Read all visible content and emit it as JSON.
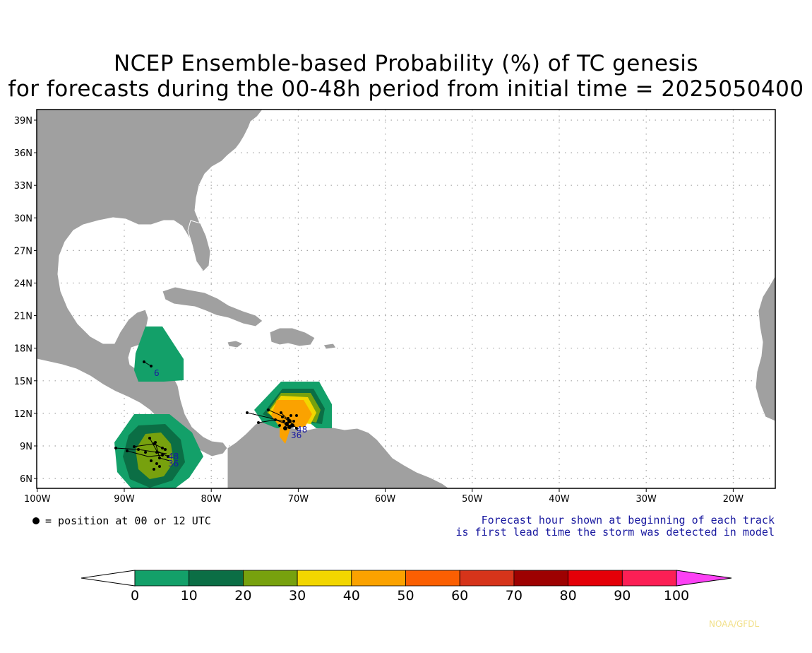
{
  "title": {
    "line1": "NCEP Ensemble-based Probability (%) of TC genesis",
    "line2": "for forecasts during the 00-48h period from initial time = 2025050400"
  },
  "map": {
    "lat_labels": [
      "39N",
      "36N",
      "33N",
      "30N",
      "27N",
      "24N",
      "21N",
      "18N",
      "15N",
      "12N",
      "9N",
      "6N"
    ],
    "lon_labels": [
      "100W",
      "90W",
      "80W",
      "70W",
      "60W",
      "50W",
      "40W",
      "30W",
      "20W"
    ],
    "colors": {
      "ocean": "#ffffff",
      "land": "#a0a0a0",
      "border": "#ffffff",
      "grid": "#a6a6a6",
      "frame": "#000000"
    }
  },
  "track_labels": {
    "honduras": "6",
    "pacific": "36",
    "pacific_b": "48",
    "caribbean": "48",
    "caribbean_b": "36"
  },
  "notes": {
    "position": "= position at 00 or 12 UTC",
    "forecast_hour_1": "Forecast hour shown at beginning of each track",
    "forecast_hour_2": "is first lead time the storm was detected in model"
  },
  "colorbar": {
    "labels": [
      "0",
      "10",
      "20",
      "30",
      "40",
      "50",
      "60",
      "70",
      "80",
      "90",
      "100"
    ],
    "colors": [
      "#ffffff",
      "#13a069",
      "#0b6e45",
      "#77a10e",
      "#f2d600",
      "#fba200",
      "#fb5f02",
      "#d6341a",
      "#9d0101",
      "#e40008",
      "#fc1f55",
      "#fc41f4"
    ]
  },
  "credit": "NOAA/GFDL"
}
